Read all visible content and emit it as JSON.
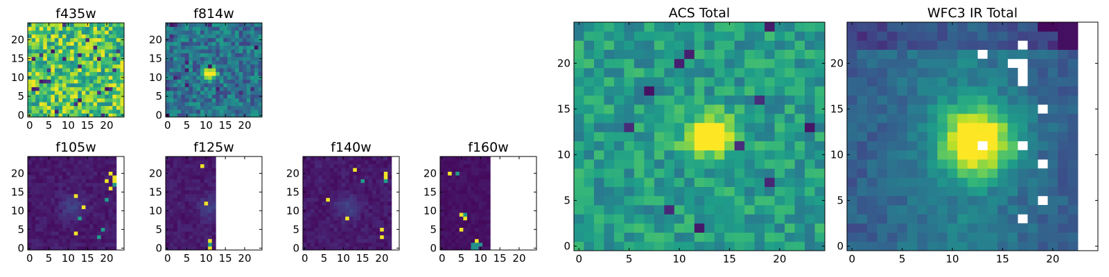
{
  "colormap": {
    "name": "viridis",
    "stops": [
      "#440154",
      "#482878",
      "#3e4a89",
      "#31688e",
      "#26828e",
      "#1f9e89",
      "#35b779",
      "#6ece58",
      "#b5de2b",
      "#fde725"
    ]
  },
  "chart_data": [
    {
      "type": "heatmap",
      "title": "f435w",
      "grid": [
        25,
        25
      ],
      "coverage_cols": 25,
      "style": "noise",
      "xticks": [
        "0",
        "5",
        "10",
        "15",
        "20"
      ],
      "yticks": [
        "0",
        "5",
        "10",
        "15",
        "20"
      ]
    },
    {
      "type": "heatmap",
      "title": "f814w",
      "grid": [
        25,
        25
      ],
      "coverage_cols": 25,
      "style": "blob",
      "source_center": [
        11,
        11
      ],
      "xticks": [
        "0",
        "5",
        "10",
        "15",
        "20"
      ],
      "yticks": [
        "0",
        "5",
        "10",
        "15",
        "20"
      ]
    },
    {
      "type": "heatmap",
      "title": "f105w",
      "grid": [
        25,
        25
      ],
      "coverage_cols": 23,
      "style": "faint",
      "hot_pixels": [
        [
          13,
          20
        ],
        [
          4,
          12
        ],
        [
          8,
          13
        ],
        [
          14,
          12
        ],
        [
          18,
          20
        ],
        [
          5,
          19
        ],
        [
          20,
          21
        ],
        [
          3,
          18
        ],
        [
          16,
          21
        ],
        [
          17,
          22
        ],
        [
          18,
          22
        ],
        [
          19,
          22
        ],
        [
          11,
          14
        ]
      ],
      "xticks": [
        "0",
        "5",
        "10",
        "15",
        "20"
      ],
      "yticks": [
        "0",
        "5",
        "10",
        "15",
        "20"
      ]
    },
    {
      "type": "heatmap",
      "title": "f125w",
      "grid": [
        25,
        25
      ],
      "coverage_cols": 13,
      "style": "faint",
      "hot_pixels": [
        [
          22,
          9
        ],
        [
          12,
          10
        ],
        [
          2,
          11
        ],
        [
          0,
          11
        ],
        [
          1,
          11
        ]
      ],
      "xticks": [
        "0",
        "5",
        "10",
        "15",
        "20"
      ],
      "yticks": [
        "0",
        "5",
        "10",
        "15",
        "20"
      ]
    },
    {
      "type": "heatmap",
      "title": "f140w",
      "grid": [
        25,
        25
      ],
      "coverage_cols": 23,
      "style": "faint",
      "hot_pixels": [
        [
          21,
          13
        ],
        [
          18,
          15
        ],
        [
          8,
          11
        ],
        [
          5,
          20
        ],
        [
          3,
          20
        ],
        [
          18,
          21
        ],
        [
          19,
          21
        ],
        [
          20,
          21
        ],
        [
          13,
          6
        ]
      ],
      "xticks": [
        "0",
        "5",
        "10",
        "15",
        "20"
      ],
      "yticks": [
        "0",
        "5",
        "10",
        "15",
        "20"
      ]
    },
    {
      "type": "heatmap",
      "title": "f160w",
      "grid": [
        25,
        25
      ],
      "coverage_cols": 13,
      "style": "dark",
      "hot_pixels": [
        [
          20,
          2
        ],
        [
          20,
          4
        ],
        [
          9,
          6
        ],
        [
          9,
          5
        ],
        [
          8,
          6
        ],
        [
          5,
          5
        ],
        [
          1,
          8
        ],
        [
          1,
          9
        ],
        [
          2,
          9
        ],
        [
          0,
          8
        ],
        [
          0,
          9
        ],
        [
          1,
          10
        ]
      ],
      "xticks": [
        "0",
        "5",
        "10",
        "15",
        "20"
      ],
      "yticks": [
        "0",
        "5",
        "10",
        "15",
        "20"
      ]
    },
    {
      "type": "heatmap",
      "title": "ACS Total",
      "grid": [
        25,
        25
      ],
      "coverage_cols": 25,
      "style": "blob_large",
      "source_center": [
        12,
        13
      ],
      "xticks": [
        "0",
        "5",
        "10",
        "15",
        "20"
      ],
      "yticks": [
        "0",
        "5",
        "10",
        "15",
        "20"
      ]
    },
    {
      "type": "heatmap",
      "title": "WFC3 IR Total",
      "grid": [
        25,
        25
      ],
      "coverage_cols": 23,
      "style": "ir",
      "source_center": [
        11.5,
        12.5
      ],
      "masked_pixels": [
        [
          22,
          17
        ],
        [
          20,
          16
        ],
        [
          20,
          17
        ],
        [
          19,
          17
        ],
        [
          18,
          17
        ],
        [
          21,
          13
        ],
        [
          15,
          19
        ],
        [
          11,
          13
        ],
        [
          11,
          17
        ],
        [
          9,
          19
        ],
        [
          5,
          19
        ],
        [
          3,
          17
        ]
      ],
      "xticks": [
        "0",
        "5",
        "10",
        "15",
        "20"
      ],
      "yticks": [
        "0",
        "5",
        "10",
        "15",
        "20"
      ]
    }
  ]
}
